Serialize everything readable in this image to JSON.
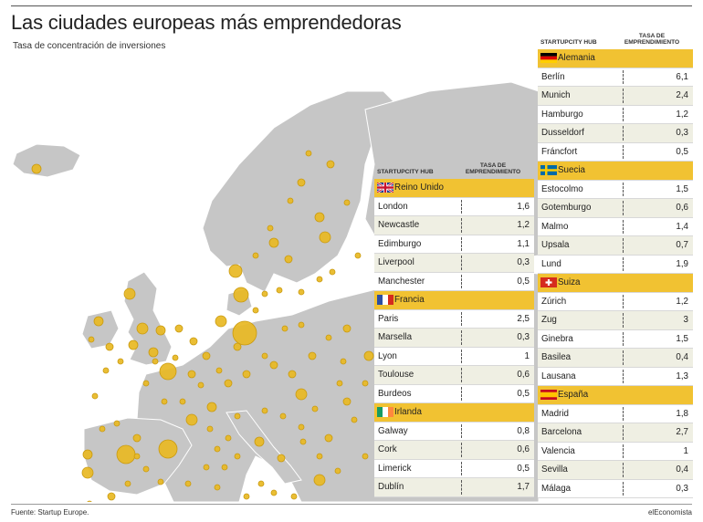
{
  "title": "Las ciudades europeas más emprendedoras",
  "subtitle": "Tasa de concentración de inversiones",
  "footer": {
    "source": "Fuente: Startup Europe.",
    "brand": "elEconomista"
  },
  "table_headers": {
    "city": "STARTUPCITY HUB",
    "rate": "TASA DE EMPRENDIMIENTO"
  },
  "colors": {
    "accent": "#f1c232",
    "land": "#c6c6c6",
    "bubble": "#e8b923"
  },
  "chart_data": {
    "type": "table",
    "title": "Las ciudades europeas más emprendedoras",
    "subtitle": "Tasa de concentración de inversiones",
    "columns": [
      "STARTUPCITY HUB",
      "TASA DE EMPRENDIMIENTO"
    ],
    "groups": [
      {
        "country": "Reino Unido",
        "flag": "uk-flag-icon",
        "rows": [
          {
            "city": "London",
            "value": "1,6"
          },
          {
            "city": "Newcastle",
            "value": "1,2"
          },
          {
            "city": "Edimburgo",
            "value": "1,1"
          },
          {
            "city": "Liverpool",
            "value": "0,3"
          },
          {
            "city": "Manchester",
            "value": "0,5"
          }
        ]
      },
      {
        "country": "Francia",
        "flag": "france-flag-icon",
        "rows": [
          {
            "city": "Paris",
            "value": "2,5"
          },
          {
            "city": "Marsella",
            "value": "0,3"
          },
          {
            "city": "Lyon",
            "value": "1"
          },
          {
            "city": "Toulouse",
            "value": "0,6"
          },
          {
            "city": "Burdeos",
            "value": "0,5"
          }
        ]
      },
      {
        "country": "Irlanda",
        "flag": "ireland-flag-icon",
        "rows": [
          {
            "city": "Galway",
            "value": "0,8"
          },
          {
            "city": "Cork",
            "value": "0,6"
          },
          {
            "city": "Limerick",
            "value": "0,5"
          },
          {
            "city": "Dublín",
            "value": "1,7"
          }
        ]
      },
      {
        "country": "Alemania",
        "flag": "germany-flag-icon",
        "rows": [
          {
            "city": "Berlín",
            "value": "6,1"
          },
          {
            "city": "Munich",
            "value": "2,4"
          },
          {
            "city": "Hamburgo",
            "value": "1,2"
          },
          {
            "city": "Dusseldorf",
            "value": "0,3"
          },
          {
            "city": "Fráncfort",
            "value": "0,5"
          }
        ]
      },
      {
        "country": "Suecia",
        "flag": "sweden-flag-icon",
        "rows": [
          {
            "city": "Estocolmo",
            "value": "1,5"
          },
          {
            "city": "Gotemburgo",
            "value": "0,6"
          },
          {
            "city": "Malmo",
            "value": "1,4"
          },
          {
            "city": "Upsala",
            "value": "0,7"
          },
          {
            "city": "Lund",
            "value": "1,9"
          }
        ]
      },
      {
        "country": "Suiza",
        "flag": "switzerland-flag-icon",
        "rows": [
          {
            "city": "Zúrich",
            "value": "1,2"
          },
          {
            "city": "Zug",
            "value": "3"
          },
          {
            "city": "Ginebra",
            "value": "1,5"
          },
          {
            "city": "Basilea",
            "value": "0,4"
          },
          {
            "city": "Lausana",
            "value": "1,3"
          }
        ]
      },
      {
        "country": "España",
        "flag": "spain-flag-icon",
        "rows": [
          {
            "city": "Madrid",
            "value": "1,8"
          },
          {
            "city": "Barcelona",
            "value": "2,7"
          },
          {
            "city": "Valencia",
            "value": "1"
          },
          {
            "city": "Sevilla",
            "value": "0,4"
          },
          {
            "city": "Málaga",
            "value": "0,3"
          }
        ]
      }
    ]
  }
}
